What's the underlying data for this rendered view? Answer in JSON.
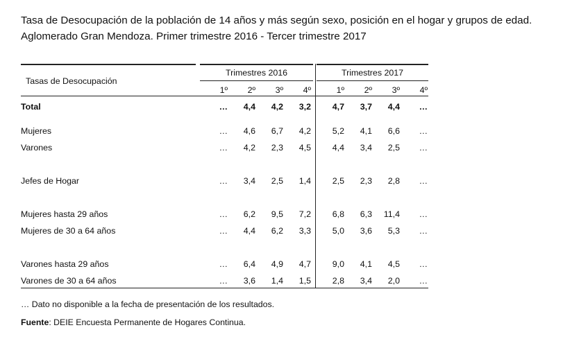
{
  "title": {
    "line1": "Tasa de Desocupación de la población de 14 años y más según sexo, posición en el hogar y grupos de edad.",
    "line2": "Aglomerado Gran Mendoza. Primer trimestre 2016 - Tercer trimestre 2017"
  },
  "table": {
    "row_header": "Tasas de Desocupación",
    "groups": [
      {
        "label": "Trimestres 2016",
        "quarters": [
          "1º",
          "2º",
          "3º",
          "4º"
        ]
      },
      {
        "label": "Trimestres 2017",
        "quarters": [
          "1º",
          "2º",
          "3º",
          "4º"
        ]
      }
    ],
    "rows": [
      {
        "label": "Total",
        "bold": true,
        "values": [
          "…",
          "4,4",
          "4,2",
          "3,2",
          "4,7",
          "3,7",
          "4,4",
          "…"
        ]
      },
      {
        "label": "Mujeres",
        "values": [
          "…",
          "4,6",
          "6,7",
          "4,2",
          "5,2",
          "4,1",
          "6,6",
          "…"
        ]
      },
      {
        "label": "Varones",
        "values": [
          "…",
          "4,2",
          "2,3",
          "4,5",
          "4,4",
          "3,4",
          "2,5",
          "…"
        ]
      },
      {
        "label": "Jefes de Hogar",
        "values": [
          "…",
          "3,4",
          "2,5",
          "1,4",
          "2,5",
          "2,3",
          "2,8",
          "…"
        ]
      },
      {
        "label": "Mujeres hasta 29 años",
        "values": [
          "…",
          "6,2",
          "9,5",
          "7,2",
          "6,8",
          "6,3",
          "11,4",
          "…"
        ]
      },
      {
        "label": "Mujeres de 30 a 64 años",
        "values": [
          "…",
          "4,4",
          "6,2",
          "3,3",
          "5,0",
          "3,6",
          "5,3",
          "…"
        ]
      },
      {
        "label": "Varones hasta 29 años",
        "values": [
          "…",
          "6,4",
          "4,9",
          "4,7",
          "9,0",
          "4,1",
          "4,5",
          "…"
        ]
      },
      {
        "label": "Varones de 30 a 64 años",
        "values": [
          "…",
          "3,6",
          "1,4",
          "1,5",
          "2,8",
          "3,4",
          "2,0",
          "…"
        ]
      }
    ]
  },
  "footnote": "… Dato no disponible a la fecha de presentación de los resultados.",
  "source": {
    "label": "Fuente",
    "text": ": DEIE  Encuesta Permanente de Hogares Continua."
  }
}
